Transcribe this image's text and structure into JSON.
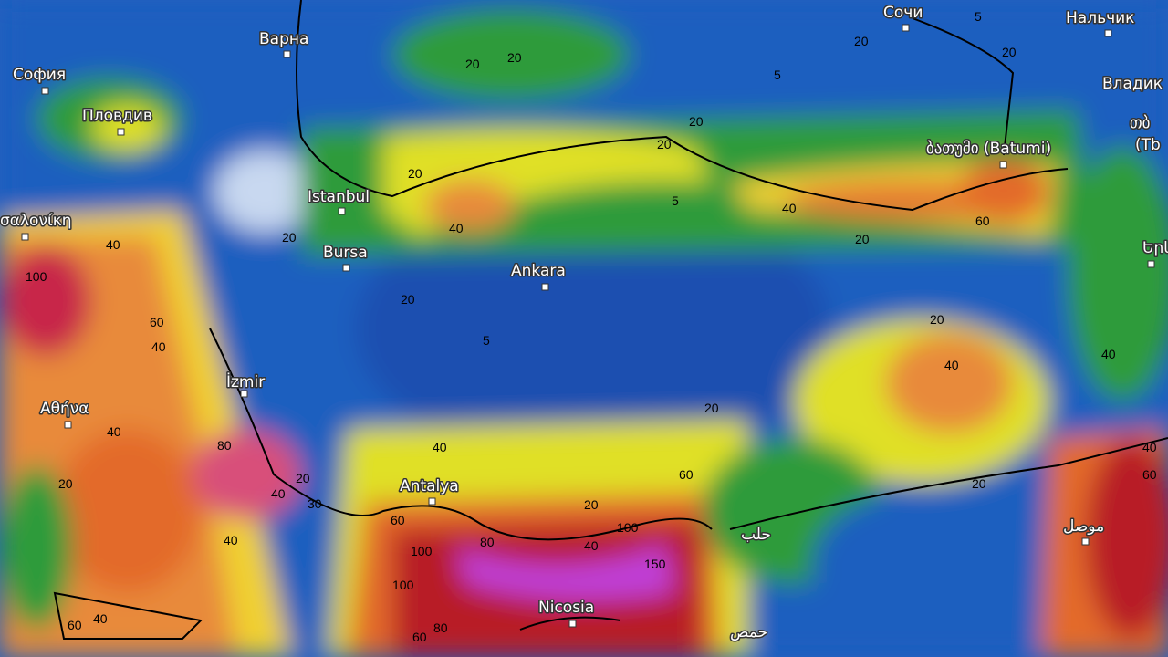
{
  "cities": [
    "София",
    "Варна",
    "Пловдив",
    "Istanbul",
    "Bursa",
    "Ankara",
    "İzmir",
    "Αθήνα",
    "Antalya",
    "Nicosia",
    "Сочи",
    "Нальчик",
    "Владик",
    "ბათუმი (Batumi)",
    "σαλονίκη",
    "حلب",
    "حمص",
    "موصل",
    "Երև",
    "თბ",
    "(Tb"
  ],
  "contour_labels": [
    20,
    20,
    5,
    5,
    20,
    20,
    20,
    20,
    20,
    40,
    5,
    40,
    20,
    60,
    20,
    5,
    20,
    40,
    40,
    20,
    40,
    60,
    20,
    40,
    30,
    60,
    100,
    80,
    100,
    150,
    100,
    80,
    60,
    20,
    40,
    20,
    40,
    60,
    20,
    40,
    60,
    40,
    100,
    40,
    40,
    40,
    60,
    80,
    20
  ]
}
